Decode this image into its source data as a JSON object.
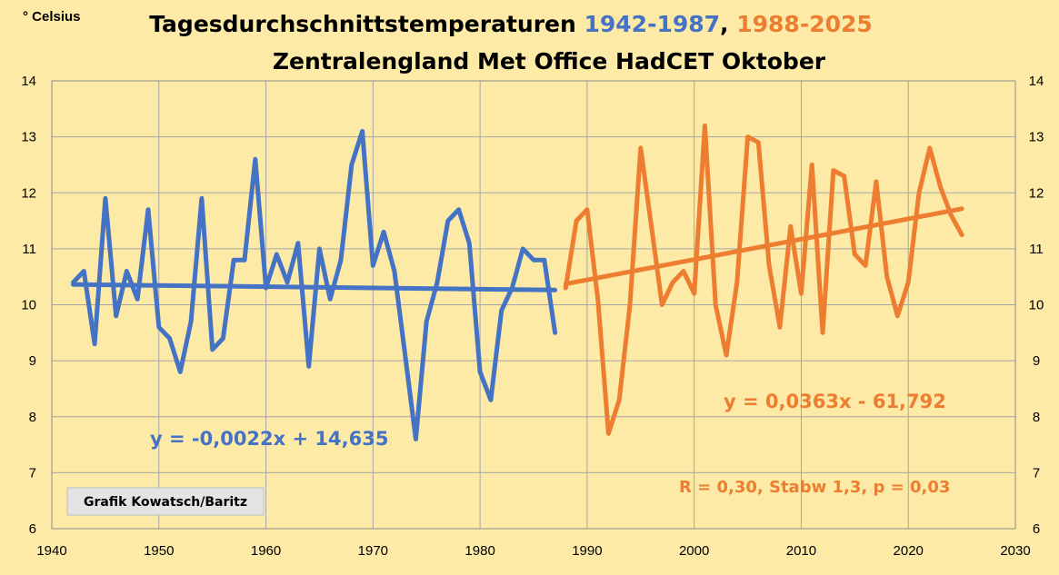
{
  "chart_data": {
    "type": "line",
    "title": {
      "line1_prefix": "Tagesdurchschnittstemperaturen ",
      "line1_range1": "1942-1987",
      "line1_sep": ", ",
      "line1_range2": "1988-2025",
      "line2": "Zentralengland Met Office HadCET Oktober"
    },
    "unit_label": "° Celsius",
    "xlim": [
      1940,
      2030
    ],
    "ylim": [
      6,
      14
    ],
    "x_ticks": [
      1940,
      1950,
      1960,
      1970,
      1980,
      1990,
      2000,
      2010,
      2020,
      2030
    ],
    "y_ticks": [
      6,
      7,
      8,
      9,
      10,
      11,
      12,
      13,
      14
    ],
    "grid": true,
    "colors": {
      "series1": "#4472c4",
      "series2": "#ed7d31",
      "background": "#fdeaa6",
      "grid": "#a6a6a6"
    },
    "series": [
      {
        "x": [
          1942,
          1943,
          1944,
          1945,
          1946,
          1947,
          1948,
          1949,
          1950,
          1951,
          1952,
          1953,
          1954,
          1955,
          1956,
          1957,
          1958,
          1959,
          1960,
          1961,
          1962,
          1963,
          1964,
          1965,
          1966,
          1967,
          1968,
          1969,
          1970,
          1971,
          1972,
          1973,
          1974,
          1975,
          1976,
          1977,
          1978,
          1979,
          1980,
          1981,
          1982,
          1983,
          1984,
          1985,
          1986,
          1987
        ],
        "values": [
          10.4,
          10.6,
          9.3,
          11.9,
          9.8,
          10.6,
          10.1,
          11.7,
          9.6,
          9.4,
          8.8,
          9.7,
          11.9,
          9.2,
          9.4,
          10.8,
          10.8,
          12.6,
          10.3,
          10.9,
          10.4,
          11.1,
          8.9,
          11.0,
          10.1,
          10.8,
          12.5,
          13.1,
          10.7,
          11.3,
          10.6,
          9.1,
          7.6,
          9.7,
          10.4,
          11.5,
          11.7,
          11.1,
          8.8,
          8.3,
          9.9,
          10.3,
          11.0,
          10.8,
          10.8,
          9.5
        ],
        "trend": {
          "slope": -0.0022,
          "intercept": 14.635,
          "x_range": [
            1942,
            1987
          ],
          "label": "y = -0,0022x + 14,635"
        }
      },
      {
        "x": [
          1988,
          1989,
          1990,
          1991,
          1992,
          1993,
          1994,
          1995,
          1996,
          1997,
          1998,
          1999,
          2000,
          2001,
          2002,
          2003,
          2004,
          2005,
          2006,
          2007,
          2008,
          2009,
          2010,
          2011,
          2012,
          2013,
          2014,
          2015,
          2016,
          2017,
          2018,
          2019,
          2020,
          2021,
          2022,
          2023,
          2024,
          2025
        ],
        "values": [
          10.3,
          11.5,
          11.7,
          10.1,
          7.7,
          8.3,
          10.0,
          12.8,
          11.4,
          10.0,
          10.4,
          10.6,
          10.2,
          13.2,
          10.0,
          9.1,
          10.4,
          13.0,
          12.9,
          10.7,
          9.6,
          11.4,
          10.2,
          12.5,
          9.5,
          12.4,
          12.3,
          10.9,
          10.7,
          12.2,
          10.5,
          9.8,
          10.4,
          12.0,
          12.8,
          12.1,
          11.6,
          11.25
        ],
        "trend": {
          "slope": 0.0363,
          "intercept": -61.792,
          "x_range": [
            1988,
            2025
          ],
          "label": "y = 0,0363x - 61,792"
        }
      }
    ],
    "stats_label": "R = 0,30, Stabw 1,3, p = 0,03",
    "credit": "Grafik Kowatsch/Baritz"
  }
}
